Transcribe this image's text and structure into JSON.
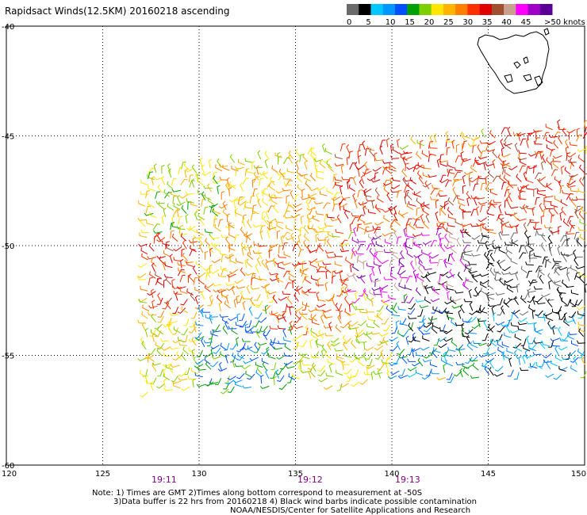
{
  "title": "Rapidsact Winds(12.5KM) 20160218 ascending",
  "colorbar": {
    "labels": [
      "0",
      "5",
      "10",
      "15",
      "20",
      "25",
      "30",
      "35",
      "40",
      "45",
      ">50 knots"
    ],
    "colors": [
      "#6a6a6a",
      "#000000",
      "#00c8ff",
      "#0096ff",
      "#0050ff",
      "#00a000",
      "#7cd000",
      "#ffe600",
      "#ffb400",
      "#ff8000",
      "#ff3000",
      "#e00000",
      "#a05030",
      "#c8a090",
      "#ff00ff",
      "#a000c8",
      "#5a0096"
    ]
  },
  "time_labels": [
    {
      "text": "19:11",
      "lon": 128.1
    },
    {
      "text": "19:12",
      "lon": 135.6
    },
    {
      "text": "19:13",
      "lon": 140.9
    }
  ],
  "notes": [
    "Note: 1) Times are GMT 2)Times along bottom correspond to measurement at -50S",
    "3)Data buffer is 22 hrs from 20160218 4) Black wind barbs indicate possible contamination",
    "NOAA/NESDIS/Center for Satellite Applications and Research"
  ],
  "chart_data": {
    "type": "wind barb map",
    "title": "Rapidsact Winds(12.5KM) 20160218 ascending",
    "x_ticks": [
      "120",
      "125",
      "130",
      "135",
      "140",
      "145",
      "150"
    ],
    "y_ticks": [
      "-40",
      "-45",
      "-50",
      "-55",
      "-60"
    ],
    "xlim": [
      120,
      150
    ],
    "ylim": [
      -60,
      -40
    ],
    "grid": true,
    "units": "knots",
    "swath": {
      "lon_min": 127.3,
      "lon_max": 150,
      "lat_top_west": -46.7,
      "lat_top_east": -44.6,
      "lat_bottom_west": -56.7,
      "lat_bottom_east": -55.8
    },
    "wind_regions": [
      {
        "lon": [
          127.3,
          131
        ],
        "lat": [
          -49.5,
          -46.5
        ],
        "knots": 20
      },
      {
        "lon": [
          131,
          137
        ],
        "lat": [
          -50,
          -46.5
        ],
        "knots": 25
      },
      {
        "lon": [
          137,
          145
        ],
        "lat": [
          -49.5,
          -45.5
        ],
        "knots": 32
      },
      {
        "lon": [
          145,
          150
        ],
        "lat": [
          -49.5,
          -44.6
        ],
        "knots": 33
      },
      {
        "lon": [
          127.3,
          130
        ],
        "lat": [
          -53,
          -49.5
        ],
        "knots": 32
      },
      {
        "lon": [
          130,
          134
        ],
        "lat": [
          -53,
          -50
        ],
        "knots": 26
      },
      {
        "lon": [
          134,
          138
        ],
        "lat": [
          -54,
          -50
        ],
        "knots": 30
      },
      {
        "lon": [
          138,
          144
        ],
        "lat": [
          -52.5,
          -49.5
        ],
        "knots": 45
      },
      {
        "lon": [
          144,
          150
        ],
        "lat": [
          -53,
          -49.5
        ],
        "knots": 0
      },
      {
        "lon": [
          127.3,
          130
        ],
        "lat": [
          -57,
          -53
        ],
        "knots": 22
      },
      {
        "lon": [
          130,
          135
        ],
        "lat": [
          -56.5,
          -53
        ],
        "knots": 13
      },
      {
        "lon": [
          135,
          140
        ],
        "lat": [
          -56.5,
          -54
        ],
        "knots": 22
      },
      {
        "lon": [
          140,
          145
        ],
        "lat": [
          -56,
          -52.5
        ],
        "knots": 12
      },
      {
        "lon": [
          145,
          150
        ],
        "lat": [
          -56,
          -53
        ],
        "knots": 8
      }
    ],
    "black_barbs_region": {
      "lon": [
        141,
        150
      ],
      "lat": [
        -54.5,
        -50.5
      ]
    }
  }
}
